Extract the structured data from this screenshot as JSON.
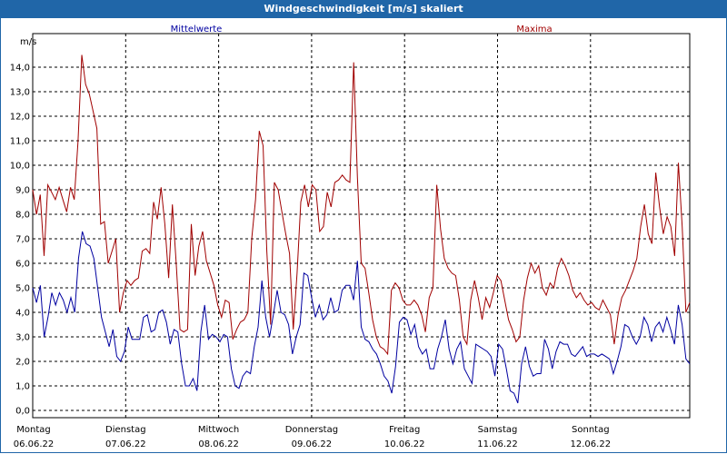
{
  "window": {
    "title": "Windgeschwindigkeit [m/s] skaliert"
  },
  "colors": {
    "title_bar": "#2066a8",
    "mean_series": "#0000a0",
    "max_series": "#a00000",
    "grid": "#000000"
  },
  "chart_data": {
    "type": "line",
    "title": "Windgeschwindigkeit [m/s] skaliert",
    "ylabel": "m/s",
    "ylim": [
      0,
      15
    ],
    "y_ticks": [
      "0,0",
      "1,0",
      "2,0",
      "3,0",
      "4,0",
      "5,0",
      "6,0",
      "7,0",
      "8,0",
      "9,0",
      "10,0",
      "11,0",
      "12,0",
      "13,0",
      "14,0"
    ],
    "y_tick_values": [
      0,
      1,
      2,
      3,
      4,
      5,
      6,
      7,
      8,
      9,
      10,
      11,
      12,
      13,
      14
    ],
    "x_range_days": [
      0,
      7
    ],
    "x_ticks": [
      {
        "day": "Montag",
        "date": "06.06.22"
      },
      {
        "day": "Dienstag",
        "date": "07.06.22"
      },
      {
        "day": "Mittwoch",
        "date": "08.06.22"
      },
      {
        "day": "Donnerstag",
        "date": "09.06.22"
      },
      {
        "day": "Freitag",
        "date": "10.06.22"
      },
      {
        "day": "Samstag",
        "date": "11.06.22"
      },
      {
        "day": "Sonntag",
        "date": "12.06.22"
      }
    ],
    "grid": true,
    "series": [
      {
        "name": "Mittelwerte",
        "color": "#0000a0",
        "values": [
          5.0,
          4.4,
          5.1,
          3.0,
          3.8,
          4.8,
          4.3,
          4.8,
          4.5,
          4.0,
          4.6,
          4.0,
          6.2,
          7.3,
          6.8,
          6.7,
          6.2,
          5.0,
          3.8,
          3.2,
          2.6,
          3.3,
          2.2,
          2.0,
          2.4,
          3.4,
          2.9,
          2.9,
          2.9,
          3.8,
          3.9,
          3.2,
          3.3,
          4.0,
          4.1,
          3.6,
          2.7,
          3.3,
          3.2,
          1.9,
          1.0,
          1.0,
          1.3,
          0.8,
          3.2,
          4.3,
          2.9,
          3.1,
          3.0,
          2.8,
          3.1,
          3.0,
          1.7,
          1.0,
          0.9,
          1.4,
          1.6,
          1.5,
          2.6,
          3.4,
          5.3,
          3.8,
          3.0,
          3.9,
          4.9,
          4.0,
          3.9,
          3.5,
          2.3,
          3.0,
          3.5,
          5.6,
          5.5,
          4.6,
          3.8,
          4.3,
          3.7,
          3.9,
          4.6,
          4.0,
          4.1,
          4.9,
          5.1,
          5.1,
          4.5,
          6.1,
          3.4,
          2.9,
          2.8,
          2.5,
          2.3,
          1.9,
          1.4,
          1.2,
          0.7,
          1.8,
          3.6,
          3.8,
          3.7,
          3.1,
          3.5,
          2.6,
          2.3,
          2.5,
          1.7,
          1.7,
          2.5,
          3.0,
          3.7,
          2.5,
          1.9,
          2.5,
          2.8,
          1.7,
          1.4,
          1.1,
          2.7,
          2.6,
          2.5,
          2.4,
          2.2,
          1.4,
          2.7,
          2.5,
          1.7,
          0.8,
          0.7,
          0.3,
          1.9,
          2.6,
          1.8,
          1.4,
          1.5,
          1.5,
          2.9,
          2.5,
          1.7,
          2.4,
          2.8,
          2.7,
          2.7,
          2.3,
          2.2,
          2.4,
          2.6,
          2.2,
          2.3,
          2.3,
          2.2,
          2.3,
          2.2,
          2.1,
          1.5,
          2.0,
          2.6,
          3.5,
          3.4,
          3.0,
          2.7,
          3.0,
          3.8,
          3.5,
          2.8,
          3.4,
          3.6,
          3.2,
          3.8,
          3.3,
          2.7,
          4.3,
          3.5,
          2.1,
          1.9
        ]
      },
      {
        "name": "Maxima",
        "color": "#a00000",
        "values": [
          9.0,
          8.0,
          8.8,
          6.3,
          9.2,
          8.9,
          8.6,
          9.1,
          8.6,
          8.1,
          9.1,
          8.6,
          11.0,
          14.5,
          13.3,
          12.9,
          12.2,
          11.5,
          7.6,
          7.7,
          6.0,
          6.5,
          7.0,
          4.0,
          4.8,
          5.3,
          5.1,
          5.3,
          5.4,
          6.5,
          6.6,
          6.4,
          8.5,
          7.8,
          9.1,
          7.6,
          5.4,
          8.4,
          6.0,
          3.3,
          3.2,
          3.3,
          7.6,
          5.5,
          6.7,
          7.3,
          6.1,
          5.6,
          5.1,
          4.3,
          3.8,
          4.5,
          4.4,
          2.9,
          3.3,
          3.6,
          3.7,
          4.0,
          7.0,
          8.6,
          11.4,
          10.8,
          6.5,
          3.5,
          9.3,
          9.0,
          8.1,
          7.2,
          6.4,
          3.3,
          5.6,
          8.5,
          9.2,
          8.3,
          9.2,
          9.0,
          7.3,
          7.5,
          8.9,
          8.3,
          9.3,
          9.4,
          9.6,
          9.4,
          9.3,
          14.2,
          9.5,
          6.0,
          5.8,
          4.8,
          3.7,
          3.0,
          2.6,
          2.5,
          2.3,
          4.9,
          5.2,
          5.0,
          4.5,
          4.3,
          4.3,
          4.5,
          4.3,
          3.9,
          3.2,
          4.6,
          5.0,
          9.2,
          7.4,
          6.2,
          5.8,
          5.6,
          5.5,
          4.5,
          3.0,
          2.7,
          4.5,
          5.3,
          4.6,
          3.7,
          4.6,
          4.2,
          4.8,
          5.5,
          5.3,
          4.5,
          3.7,
          3.3,
          2.8,
          3.0,
          4.5,
          5.4,
          6.0,
          5.6,
          5.9,
          5.0,
          4.7,
          5.2,
          5.0,
          5.8,
          6.2,
          5.9,
          5.5,
          4.9,
          4.6,
          4.8,
          4.5,
          4.3,
          4.4,
          4.2,
          4.1,
          4.5,
          4.2,
          3.9,
          2.7,
          3.9,
          4.6,
          4.9,
          5.3,
          5.7,
          6.2,
          7.5,
          8.4,
          7.2,
          6.8,
          9.7,
          8.3,
          7.2,
          7.9,
          7.5,
          6.3,
          10.1,
          7.5,
          4.0,
          4.4
        ]
      }
    ]
  }
}
